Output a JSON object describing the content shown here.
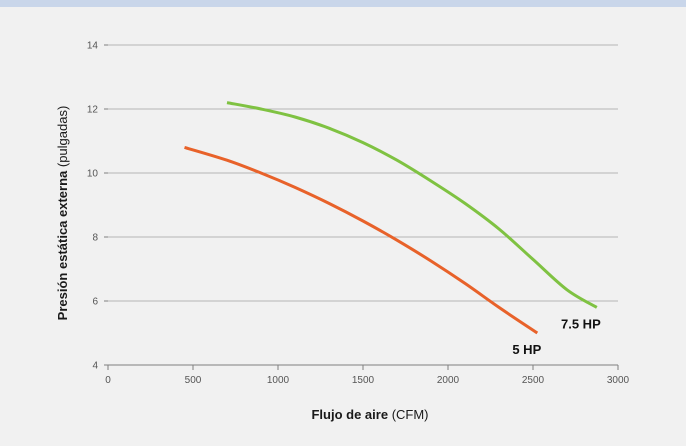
{
  "chart_data": {
    "type": "line",
    "xlabel_bold": "Flujo de aire",
    "xlabel_unit": "(CFM)",
    "ylabel_bold": "Presión estática externa",
    "ylabel_unit": "(pulgadas)",
    "xlim": [
      0,
      3000
    ],
    "ylim": [
      4,
      14
    ],
    "xticks": [
      0,
      500,
      1000,
      1500,
      2000,
      2500,
      3000
    ],
    "yticks": [
      4,
      6,
      8,
      10,
      12,
      14
    ],
    "grid": "horizontal",
    "series": [
      {
        "name": "5 HP",
        "color": "#e8622a",
        "x": [
          450,
          700,
          900,
          1100,
          1300,
          1500,
          1700,
          1900,
          2100,
          2300,
          2525
        ],
        "y": [
          10.8,
          10.4,
          10.0,
          9.55,
          9.05,
          8.5,
          7.9,
          7.25,
          6.55,
          5.8,
          5.0
        ]
      },
      {
        "name": "7.5 HP",
        "color": "#7fc242",
        "x": [
          700,
          900,
          1100,
          1300,
          1500,
          1700,
          1900,
          2100,
          2300,
          2500,
          2700,
          2875
        ],
        "y": [
          12.2,
          12.0,
          11.75,
          11.4,
          10.95,
          10.4,
          9.75,
          9.05,
          8.25,
          7.3,
          6.35,
          5.8
        ]
      }
    ]
  }
}
